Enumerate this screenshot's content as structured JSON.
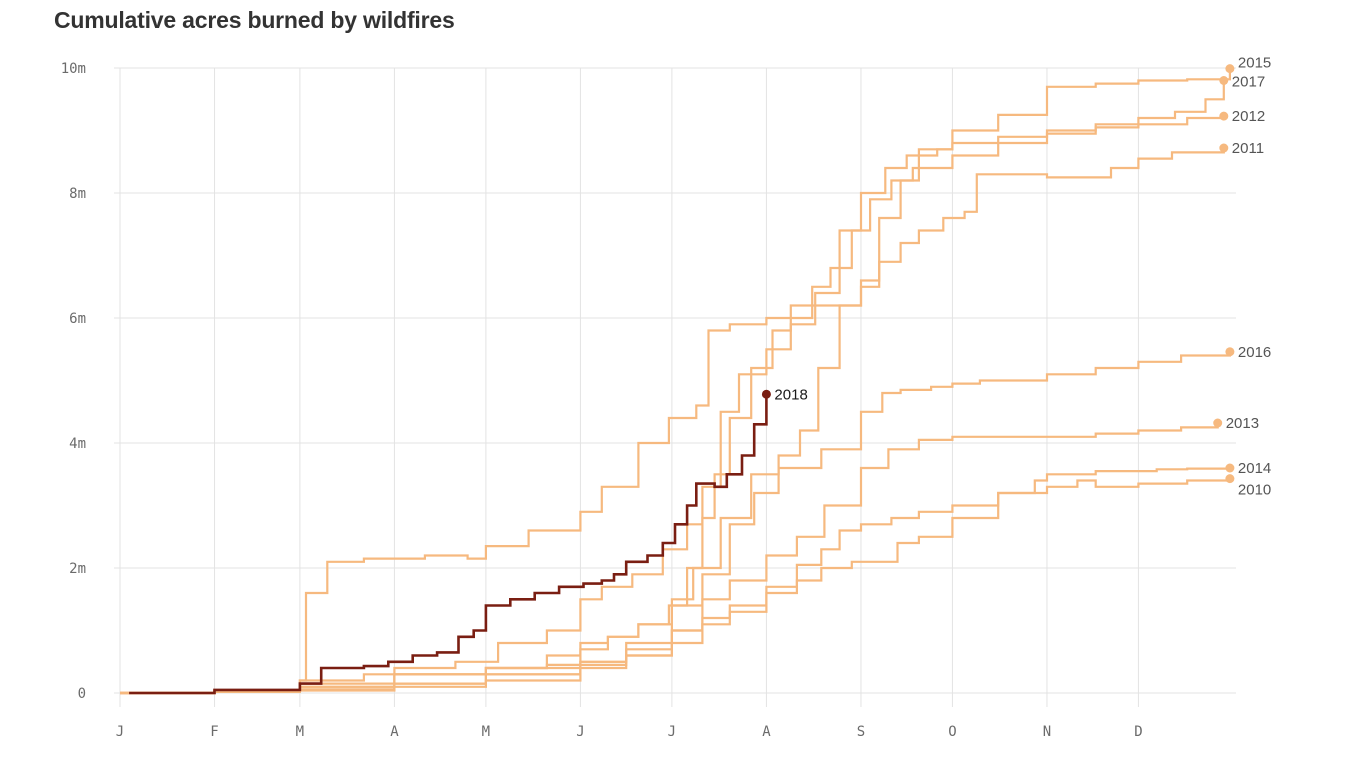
{
  "title": "Cumulative acres burned by wildfires",
  "colors": {
    "past": "#f6b97f",
    "current": "#7a1e12",
    "grid": "#e3e3e3",
    "text": "#6b6b6b"
  },
  "chart_data": {
    "type": "line",
    "title": "Cumulative acres burned by wildfires",
    "xlabel": "",
    "ylabel": "",
    "x_unit": "day of year",
    "xlim": [
      0,
      366
    ],
    "ylim": [
      0,
      10000000
    ],
    "x_ticks": [
      {
        "label": "J",
        "day": 0
      },
      {
        "label": "F",
        "day": 31
      },
      {
        "label": "M",
        "day": 59
      },
      {
        "label": "A",
        "day": 90
      },
      {
        "label": "M",
        "day": 120
      },
      {
        "label": "J",
        "day": 151
      },
      {
        "label": "J",
        "day": 181
      },
      {
        "label": "A",
        "day": 212
      },
      {
        "label": "S",
        "day": 243
      },
      {
        "label": "O",
        "day": 273
      },
      {
        "label": "N",
        "day": 304
      },
      {
        "label": "D",
        "day": 334
      }
    ],
    "y_ticks": [
      {
        "label": "0",
        "value": 0
      },
      {
        "label": "2m",
        "value": 2000000
      },
      {
        "label": "4m",
        "value": 4000000
      },
      {
        "label": "6m",
        "value": 6000000
      },
      {
        "label": "8m",
        "value": 8000000
      },
      {
        "label": "10m",
        "value": 10000000
      }
    ],
    "grid": true,
    "legend": "end-of-line labels",
    "series": [
      {
        "name": "2015",
        "highlight": false,
        "x": [
          0,
          31,
          59,
          61,
          68,
          80,
          100,
          114,
          120,
          134,
          151,
          158,
          170,
          180,
          189,
          193,
          200,
          212,
          227,
          243,
          249,
          256,
          262,
          273,
          288,
          304,
          320,
          334,
          350,
          364
        ],
        "y": [
          0,
          30000,
          200000,
          1600000,
          2100000,
          2150000,
          2200000,
          2150000,
          2350000,
          2600000,
          2900000,
          3300000,
          4000000,
          4400000,
          4600000,
          5800000,
          5900000,
          6000000,
          6200000,
          6500000,
          7600000,
          8200000,
          8700000,
          9000000,
          9250000,
          9700000,
          9750000,
          9800000,
          9820000,
          9990000
        ]
      },
      {
        "name": "2017",
        "highlight": false,
        "x": [
          0,
          31,
          59,
          80,
          90,
          110,
          124,
          140,
          151,
          158,
          168,
          178,
          186,
          191,
          197,
          203,
          212,
          220,
          228,
          236,
          243,
          251,
          258,
          268,
          273,
          288,
          304,
          320,
          334,
          346,
          356,
          362
        ],
        "y": [
          0,
          40000,
          200000,
          300000,
          400000,
          500000,
          800000,
          1000000,
          1500000,
          1700000,
          1900000,
          2300000,
          2700000,
          3300000,
          4500000,
          5100000,
          5500000,
          5900000,
          6400000,
          7400000,
          8000000,
          8400000,
          8600000,
          8700000,
          8800000,
          8900000,
          9000000,
          9100000,
          9200000,
          9300000,
          9500000,
          9800000
        ]
      },
      {
        "name": "2012",
        "highlight": false,
        "x": [
          0,
          31,
          59,
          90,
          120,
          140,
          151,
          160,
          170,
          180,
          186,
          191,
          195,
          200,
          207,
          214,
          220,
          227,
          233,
          240,
          246,
          253,
          260,
          273,
          288,
          304,
          320,
          334,
          350,
          362
        ],
        "y": [
          0,
          30000,
          150000,
          300000,
          400000,
          600000,
          800000,
          900000,
          1100000,
          1400000,
          2000000,
          2800000,
          3500000,
          4400000,
          5200000,
          5800000,
          6200000,
          6500000,
          6800000,
          7400000,
          7900000,
          8200000,
          8400000,
          8600000,
          8800000,
          8950000,
          9050000,
          9100000,
          9200000,
          9230000
        ]
      },
      {
        "name": "2011",
        "highlight": false,
        "x": [
          0,
          31,
          59,
          90,
          120,
          140,
          151,
          160,
          170,
          181,
          188,
          197,
          207,
          216,
          223,
          229,
          236,
          243,
          249,
          256,
          262,
          270,
          277,
          281,
          295,
          304,
          325,
          334,
          345,
          362
        ],
        "y": [
          0,
          20000,
          100000,
          300000,
          400000,
          450000,
          700000,
          900000,
          1100000,
          1500000,
          2000000,
          2800000,
          3500000,
          3800000,
          4200000,
          5200000,
          6200000,
          6600000,
          6900000,
          7200000,
          7400000,
          7600000,
          7700000,
          8300000,
          8300000,
          8250000,
          8400000,
          8550000,
          8650000,
          8720000
        ]
      },
      {
        "name": "2016",
        "highlight": false,
        "x": [
          0,
          31,
          59,
          90,
          120,
          151,
          166,
          181,
          191,
          200,
          208,
          216,
          230,
          243,
          250,
          256,
          266,
          273,
          282,
          304,
          320,
          334,
          348,
          364
        ],
        "y": [
          0,
          20000,
          100000,
          300000,
          400000,
          500000,
          800000,
          1400000,
          1900000,
          2700000,
          3200000,
          3600000,
          3900000,
          4500000,
          4800000,
          4850000,
          4900000,
          4950000,
          5000000,
          5100000,
          5200000,
          5300000,
          5400000,
          5460000
        ]
      },
      {
        "name": "2013",
        "highlight": false,
        "x": [
          0,
          31,
          59,
          90,
          120,
          151,
          166,
          181,
          191,
          200,
          212,
          222,
          231,
          243,
          252,
          262,
          273,
          288,
          304,
          320,
          334,
          348,
          360
        ],
        "y": [
          0,
          20000,
          50000,
          150000,
          300000,
          500000,
          700000,
          1000000,
          1500000,
          1800000,
          2200000,
          2500000,
          3000000,
          3600000,
          3900000,
          4050000,
          4100000,
          4100000,
          4100000,
          4150000,
          4200000,
          4250000,
          4320000
        ]
      },
      {
        "name": "2014",
        "highlight": false,
        "x": [
          0,
          31,
          59,
          90,
          120,
          151,
          166,
          181,
          191,
          200,
          212,
          222,
          230,
          236,
          243,
          253,
          262,
          273,
          288,
          300,
          304,
          314,
          320,
          340,
          350,
          364
        ],
        "y": [
          0,
          20000,
          60000,
          150000,
          300000,
          450000,
          600000,
          800000,
          1100000,
          1300000,
          1700000,
          2050000,
          2300000,
          2600000,
          2700000,
          2800000,
          2900000,
          3000000,
          3200000,
          3400000,
          3500000,
          3500000,
          3550000,
          3580000,
          3590000,
          3600000
        ]
      },
      {
        "name": "2010",
        "highlight": false,
        "x": [
          0,
          31,
          59,
          90,
          120,
          151,
          166,
          181,
          191,
          200,
          212,
          222,
          230,
          240,
          255,
          262,
          273,
          288,
          304,
          314,
          320,
          334,
          350,
          364
        ],
        "y": [
          0,
          20000,
          40000,
          100000,
          200000,
          400000,
          600000,
          1000000,
          1200000,
          1400000,
          1600000,
          1800000,
          2000000,
          2100000,
          2400000,
          2500000,
          2800000,
          3200000,
          3300000,
          3400000,
          3300000,
          3350000,
          3400000,
          3430000
        ]
      },
      {
        "name": "2018",
        "highlight": true,
        "x": [
          3,
          31,
          59,
          66,
          73,
          80,
          88,
          96,
          104,
          111,
          116,
          120,
          128,
          136,
          144,
          152,
          158,
          162,
          166,
          173,
          178,
          182,
          186,
          189,
          195,
          199,
          204,
          208,
          212
        ],
        "y": [
          0,
          50000,
          150000,
          400000,
          400000,
          430000,
          500000,
          600000,
          650000,
          900000,
          1000000,
          1400000,
          1500000,
          1600000,
          1700000,
          1750000,
          1800000,
          1900000,
          2100000,
          2200000,
          2400000,
          2700000,
          3000000,
          3350000,
          3300000,
          3500000,
          3800000,
          4300000,
          4780000
        ]
      }
    ]
  }
}
